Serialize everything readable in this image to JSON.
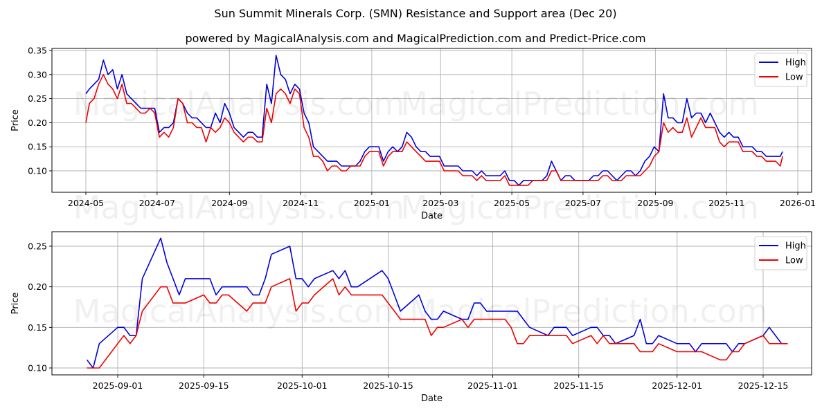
{
  "title": "Sun Summit Minerals Corp. (SMN) Resistance and Support area (Dec 20)",
  "subtitle": "powered by MagicalAnalysis.com and MagicalPrediction.com and Predict-Price.com",
  "watermarks": [
    "MagicalAnalysis.com",
    "MagicalPrediction.com"
  ],
  "colors": {
    "high": "#0000dd",
    "low": "#ee0000",
    "grid": "#b0b0b0"
  },
  "chart_data": [
    {
      "type": "line",
      "title": "Sun Summit Minerals Corp. (SMN) Resistance and Support area (Dec 20)",
      "xlabel": "Date",
      "ylabel": "Price",
      "ylim": [
        0.055,
        0.352
      ],
      "yticks": [
        "0.10",
        "0.15",
        "0.20",
        "0.25",
        "0.30",
        "0.35"
      ],
      "xticks": [
        "2024-05",
        "2024-07",
        "2024-09",
        "2024-11",
        "2025-01",
        "2025-03",
        "2025-05",
        "2025-07",
        "2025-09",
        "2025-11",
        "2026-01"
      ],
      "grid": true,
      "legend": {
        "position": "upper right",
        "entries": [
          "High",
          "Low"
        ]
      },
      "x": [
        "2024-05-01",
        "2024-05-04",
        "2024-05-08",
        "2024-05-12",
        "2024-05-16",
        "2024-05-20",
        "2024-05-24",
        "2024-05-28",
        "2024-06-01",
        "2024-06-05",
        "2024-06-09",
        "2024-06-13",
        "2024-06-17",
        "2024-06-21",
        "2024-06-25",
        "2024-06-29",
        "2024-07-03",
        "2024-07-07",
        "2024-07-11",
        "2024-07-15",
        "2024-07-19",
        "2024-07-23",
        "2024-07-27",
        "2024-07-31",
        "2024-08-04",
        "2024-08-08",
        "2024-08-12",
        "2024-08-16",
        "2024-08-20",
        "2024-08-24",
        "2024-08-28",
        "2024-09-01",
        "2024-09-05",
        "2024-09-09",
        "2024-09-13",
        "2024-09-17",
        "2024-09-21",
        "2024-09-25",
        "2024-09-29",
        "2024-10-03",
        "2024-10-07",
        "2024-10-11",
        "2024-10-15",
        "2024-10-19",
        "2024-10-23",
        "2024-10-27",
        "2024-10-31",
        "2024-11-04",
        "2024-11-08",
        "2024-11-12",
        "2024-11-16",
        "2024-11-20",
        "2024-11-24",
        "2024-11-28",
        "2024-12-02",
        "2024-12-06",
        "2024-12-10",
        "2024-12-14",
        "2024-12-18",
        "2024-12-22",
        "2024-12-26",
        "2024-12-30",
        "2025-01-03",
        "2025-01-07",
        "2025-01-11",
        "2025-01-15",
        "2025-01-19",
        "2025-01-23",
        "2025-01-27",
        "2025-01-31",
        "2025-02-04",
        "2025-02-08",
        "2025-02-12",
        "2025-02-16",
        "2025-02-20",
        "2025-02-24",
        "2025-02-28",
        "2025-03-04",
        "2025-03-08",
        "2025-03-12",
        "2025-03-16",
        "2025-03-20",
        "2025-03-24",
        "2025-03-28",
        "2025-04-01",
        "2025-04-05",
        "2025-04-09",
        "2025-04-13",
        "2025-04-17",
        "2025-04-21",
        "2025-04-25",
        "2025-04-29",
        "2025-05-03",
        "2025-05-07",
        "2025-05-11",
        "2025-05-15",
        "2025-05-19",
        "2025-05-23",
        "2025-05-27",
        "2025-05-31",
        "2025-06-04",
        "2025-06-08",
        "2025-06-12",
        "2025-06-16",
        "2025-06-20",
        "2025-06-24",
        "2025-06-28",
        "2025-07-02",
        "2025-07-06",
        "2025-07-10",
        "2025-07-14",
        "2025-07-18",
        "2025-07-22",
        "2025-07-26",
        "2025-07-30",
        "2025-08-03",
        "2025-08-07",
        "2025-08-11",
        "2025-08-15",
        "2025-08-19",
        "2025-08-23",
        "2025-08-27",
        "2025-08-31",
        "2025-09-04",
        "2025-09-08",
        "2025-09-12",
        "2025-09-16",
        "2025-09-20",
        "2025-09-24",
        "2025-09-28",
        "2025-10-02",
        "2025-10-06",
        "2025-10-10",
        "2025-10-14",
        "2025-10-18",
        "2025-10-22",
        "2025-10-26",
        "2025-10-30",
        "2025-11-03",
        "2025-11-07",
        "2025-11-11",
        "2025-11-15",
        "2025-11-19",
        "2025-11-23",
        "2025-11-27",
        "2025-12-01",
        "2025-12-05",
        "2025-12-09",
        "2025-12-13",
        "2025-12-17",
        "2025-12-19"
      ],
      "series": [
        {
          "name": "High",
          "color": "#0000dd",
          "values": [
            0.26,
            0.27,
            0.28,
            0.29,
            0.33,
            0.3,
            0.31,
            0.27,
            0.3,
            0.26,
            0.25,
            0.24,
            0.23,
            0.23,
            0.23,
            0.23,
            0.18,
            0.19,
            0.19,
            0.2,
            0.25,
            0.24,
            0.22,
            0.21,
            0.21,
            0.2,
            0.19,
            0.19,
            0.22,
            0.2,
            0.24,
            0.22,
            0.19,
            0.18,
            0.17,
            0.18,
            0.18,
            0.17,
            0.17,
            0.28,
            0.24,
            0.34,
            0.3,
            0.29,
            0.26,
            0.28,
            0.27,
            0.22,
            0.2,
            0.15,
            0.14,
            0.13,
            0.12,
            0.12,
            0.12,
            0.11,
            0.11,
            0.11,
            0.11,
            0.12,
            0.14,
            0.15,
            0.15,
            0.15,
            0.12,
            0.14,
            0.15,
            0.14,
            0.15,
            0.18,
            0.17,
            0.15,
            0.14,
            0.14,
            0.13,
            0.13,
            0.13,
            0.11,
            0.11,
            0.11,
            0.11,
            0.1,
            0.1,
            0.1,
            0.09,
            0.1,
            0.09,
            0.09,
            0.09,
            0.09,
            0.1,
            0.08,
            0.08,
            0.07,
            0.08,
            0.08,
            0.08,
            0.08,
            0.08,
            0.09,
            0.12,
            0.1,
            0.08,
            0.09,
            0.09,
            0.08,
            0.08,
            0.08,
            0.08,
            0.09,
            0.09,
            0.1,
            0.1,
            0.09,
            0.08,
            0.09,
            0.1,
            0.1,
            0.09,
            0.1,
            0.12,
            0.13,
            0.15,
            0.14,
            0.26,
            0.21,
            0.21,
            0.2,
            0.2,
            0.25,
            0.21,
            0.22,
            0.22,
            0.2,
            0.22,
            0.2,
            0.18,
            0.17,
            0.18,
            0.17,
            0.17,
            0.15,
            0.15,
            0.15,
            0.14,
            0.14,
            0.13,
            0.13,
            0.13,
            0.13,
            0.14,
            0.15,
            0.13
          ]
        },
        {
          "name": "Low",
          "color": "#ee0000",
          "values": [
            0.2,
            0.24,
            0.25,
            0.28,
            0.3,
            0.28,
            0.27,
            0.25,
            0.28,
            0.24,
            0.24,
            0.23,
            0.22,
            0.22,
            0.23,
            0.22,
            0.17,
            0.18,
            0.17,
            0.19,
            0.25,
            0.24,
            0.2,
            0.2,
            0.19,
            0.19,
            0.16,
            0.19,
            0.18,
            0.19,
            0.21,
            0.2,
            0.18,
            0.17,
            0.16,
            0.17,
            0.17,
            0.16,
            0.16,
            0.23,
            0.2,
            0.26,
            0.27,
            0.26,
            0.24,
            0.27,
            0.26,
            0.19,
            0.17,
            0.13,
            0.13,
            0.12,
            0.1,
            0.11,
            0.11,
            0.1,
            0.1,
            0.11,
            0.11,
            0.11,
            0.13,
            0.14,
            0.14,
            0.14,
            0.11,
            0.13,
            0.14,
            0.14,
            0.14,
            0.16,
            0.15,
            0.14,
            0.13,
            0.12,
            0.12,
            0.12,
            0.12,
            0.1,
            0.1,
            0.1,
            0.1,
            0.09,
            0.09,
            0.09,
            0.08,
            0.09,
            0.08,
            0.08,
            0.08,
            0.08,
            0.09,
            0.07,
            0.07,
            0.07,
            0.07,
            0.07,
            0.08,
            0.08,
            0.08,
            0.08,
            0.1,
            0.1,
            0.08,
            0.08,
            0.08,
            0.08,
            0.08,
            0.08,
            0.08,
            0.08,
            0.08,
            0.09,
            0.09,
            0.08,
            0.08,
            0.08,
            0.09,
            0.09,
            0.09,
            0.09,
            0.1,
            0.11,
            0.13,
            0.14,
            0.2,
            0.18,
            0.19,
            0.18,
            0.18,
            0.21,
            0.17,
            0.19,
            0.21,
            0.19,
            0.19,
            0.19,
            0.16,
            0.15,
            0.16,
            0.16,
            0.16,
            0.14,
            0.14,
            0.14,
            0.13,
            0.13,
            0.12,
            0.12,
            0.12,
            0.11,
            0.13,
            0.14,
            0.13
          ]
        }
      ]
    },
    {
      "type": "line",
      "xlabel": "Date",
      "ylabel": "Price",
      "ylim": [
        0.092,
        0.268
      ],
      "yticks": [
        "0.10",
        "0.15",
        "0.20",
        "0.25"
      ],
      "xticks": [
        "2025-09-01",
        "2025-09-15",
        "2025-10-01",
        "2025-10-15",
        "2025-11-01",
        "2025-11-15",
        "2025-12-01",
        "2025-12-15"
      ],
      "grid": true,
      "legend": {
        "position": "upper right",
        "entries": [
          "High",
          "Low"
        ]
      },
      "x": [
        "2025-08-27",
        "2025-08-28",
        "2025-08-29",
        "2025-09-01",
        "2025-09-02",
        "2025-09-03",
        "2025-09-04",
        "2025-09-05",
        "2025-09-08",
        "2025-09-09",
        "2025-09-10",
        "2025-09-11",
        "2025-09-12",
        "2025-09-15",
        "2025-09-16",
        "2025-09-17",
        "2025-09-18",
        "2025-09-19",
        "2025-09-22",
        "2025-09-23",
        "2025-09-24",
        "2025-09-25",
        "2025-09-26",
        "2025-09-29",
        "2025-09-30",
        "2025-10-01",
        "2025-10-02",
        "2025-10-03",
        "2025-10-06",
        "2025-10-07",
        "2025-10-08",
        "2025-10-09",
        "2025-10-10",
        "2025-10-14",
        "2025-10-15",
        "2025-10-17",
        "2025-10-20",
        "2025-10-21",
        "2025-10-22",
        "2025-10-23",
        "2025-10-24",
        "2025-10-27",
        "2025-10-28",
        "2025-10-29",
        "2025-10-30",
        "2025-10-31",
        "2025-11-03",
        "2025-11-04",
        "2025-11-05",
        "2025-11-06",
        "2025-11-07",
        "2025-11-10",
        "2025-11-11",
        "2025-11-12",
        "2025-11-13",
        "2025-11-14",
        "2025-11-17",
        "2025-11-18",
        "2025-11-19",
        "2025-11-20",
        "2025-11-21",
        "2025-11-24",
        "2025-11-25",
        "2025-11-26",
        "2025-11-27",
        "2025-11-28",
        "2025-12-01",
        "2025-12-02",
        "2025-12-03",
        "2025-12-04",
        "2025-12-05",
        "2025-12-08",
        "2025-12-09",
        "2025-12-10",
        "2025-12-11",
        "2025-12-12",
        "2025-12-15",
        "2025-12-16",
        "2025-12-17",
        "2025-12-18",
        "2025-12-19"
      ],
      "series": [
        {
          "name": "High",
          "color": "#0000dd",
          "values": [
            0.11,
            0.1,
            0.13,
            0.15,
            0.15,
            0.14,
            0.14,
            0.21,
            0.26,
            0.23,
            0.21,
            0.19,
            0.21,
            0.21,
            0.21,
            0.19,
            0.2,
            0.2,
            0.2,
            0.19,
            0.19,
            0.21,
            0.24,
            0.25,
            0.21,
            0.21,
            0.2,
            0.21,
            0.22,
            0.21,
            0.22,
            0.2,
            0.2,
            0.22,
            0.21,
            0.17,
            0.19,
            0.17,
            0.16,
            0.16,
            0.17,
            0.16,
            0.16,
            0.18,
            0.18,
            0.17,
            0.17,
            0.17,
            0.17,
            0.16,
            0.15,
            0.14,
            0.15,
            0.15,
            0.15,
            0.14,
            0.15,
            0.15,
            0.14,
            0.14,
            0.13,
            0.14,
            0.16,
            0.13,
            0.13,
            0.14,
            0.13,
            0.13,
            0.13,
            0.12,
            0.13,
            0.13,
            0.13,
            0.12,
            0.13,
            0.13,
            0.14,
            0.15,
            0.14,
            0.13,
            0.13
          ]
        },
        {
          "name": "Low",
          "color": "#ee0000",
          "values": [
            0.1,
            0.1,
            0.1,
            0.13,
            0.14,
            0.13,
            0.14,
            0.17,
            0.2,
            0.2,
            0.18,
            0.18,
            0.18,
            0.19,
            0.18,
            0.18,
            0.19,
            0.19,
            0.17,
            0.18,
            0.18,
            0.18,
            0.2,
            0.21,
            0.17,
            0.18,
            0.18,
            0.19,
            0.21,
            0.19,
            0.2,
            0.19,
            0.19,
            0.19,
            0.18,
            0.16,
            0.16,
            0.16,
            0.14,
            0.15,
            0.15,
            0.16,
            0.15,
            0.16,
            0.16,
            0.16,
            0.16,
            0.15,
            0.13,
            0.13,
            0.14,
            0.14,
            0.14,
            0.14,
            0.14,
            0.13,
            0.14,
            0.13,
            0.14,
            0.13,
            0.13,
            0.13,
            0.12,
            0.12,
            0.12,
            0.13,
            0.12,
            0.12,
            0.12,
            0.12,
            0.12,
            0.11,
            0.11,
            0.12,
            0.12,
            0.13,
            0.14,
            0.13,
            0.13,
            0.13,
            0.13
          ]
        }
      ]
    }
  ]
}
